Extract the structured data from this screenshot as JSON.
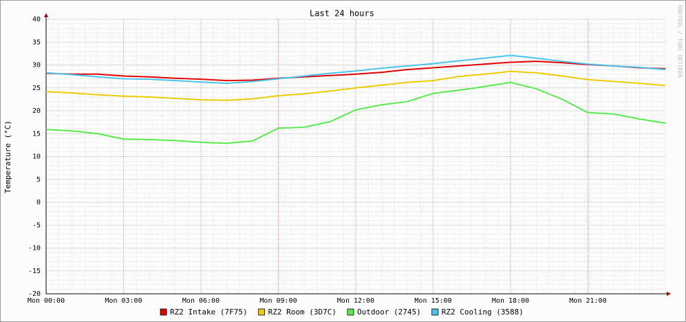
{
  "chart_data": {
    "type": "line",
    "title": "Last 24 hours",
    "y_label": "Temperature (°C)",
    "watermark": "RRDTOOL / TOBI OETIKER",
    "x": [
      0,
      1,
      2,
      3,
      4,
      5,
      6,
      7,
      8,
      9,
      10,
      11,
      12,
      13,
      14,
      15,
      16,
      17,
      18,
      19,
      20,
      21,
      22,
      23,
      24
    ],
    "xlim": [
      0,
      24
    ],
    "xticks": [
      {
        "value": 0,
        "label": "Mon 00:00"
      },
      {
        "value": 3,
        "label": "Mon 03:00"
      },
      {
        "value": 6,
        "label": "Mon 06:00"
      },
      {
        "value": 9,
        "label": "Mon 09:00"
      },
      {
        "value": 12,
        "label": "Mon 12:00"
      },
      {
        "value": 15,
        "label": "Mon 15:00"
      },
      {
        "value": 18,
        "label": "Mon 18:00"
      },
      {
        "value": 21,
        "label": "Mon 21:00"
      }
    ],
    "ylim": [
      -20,
      40
    ],
    "yticks": [
      -20,
      -15,
      -10,
      -5,
      0,
      5,
      10,
      15,
      20,
      25,
      30,
      35,
      40
    ],
    "grid": true,
    "series": [
      {
        "name": "RZ2 Intake (7F75)",
        "color": "#e00000",
        "values": [
          28.2,
          28.0,
          28.0,
          27.6,
          27.4,
          27.1,
          26.9,
          26.6,
          26.7,
          27.1,
          27.4,
          27.7,
          28.0,
          28.4,
          29.0,
          29.4,
          29.8,
          30.2,
          30.6,
          30.8,
          30.5,
          30.1,
          29.8,
          29.4,
          29.2
        ]
      },
      {
        "name": "RZ2 Room (3D7C)",
        "color": "#eacc00",
        "values": [
          24.2,
          23.9,
          23.5,
          23.2,
          23.0,
          22.7,
          22.4,
          22.3,
          22.6,
          23.3,
          23.7,
          24.3,
          25.0,
          25.6,
          26.2,
          26.6,
          27.5,
          28.0,
          28.6,
          28.3,
          27.6,
          26.8,
          26.4,
          26.0,
          25.5
        ]
      },
      {
        "name": "Outdoor (2745)",
        "color": "#54ec48",
        "values": [
          15.9,
          15.6,
          15.0,
          13.8,
          13.7,
          13.5,
          13.1,
          12.9,
          13.4,
          16.2,
          16.4,
          17.6,
          20.2,
          21.3,
          22.0,
          23.8,
          24.5,
          25.3,
          26.2,
          24.8,
          22.5,
          19.6,
          19.3,
          18.2,
          17.3
        ]
      },
      {
        "name": "RZ2 Cooling (3588)",
        "color": "#48c4ec",
        "values": [
          28.3,
          27.9,
          27.4,
          27.0,
          26.9,
          26.6,
          26.3,
          26.0,
          26.4,
          27.0,
          27.6,
          28.2,
          28.7,
          29.3,
          29.8,
          30.3,
          30.9,
          31.5,
          32.1,
          31.5,
          30.8,
          30.2,
          29.8,
          29.5,
          29.0
        ]
      }
    ]
  }
}
